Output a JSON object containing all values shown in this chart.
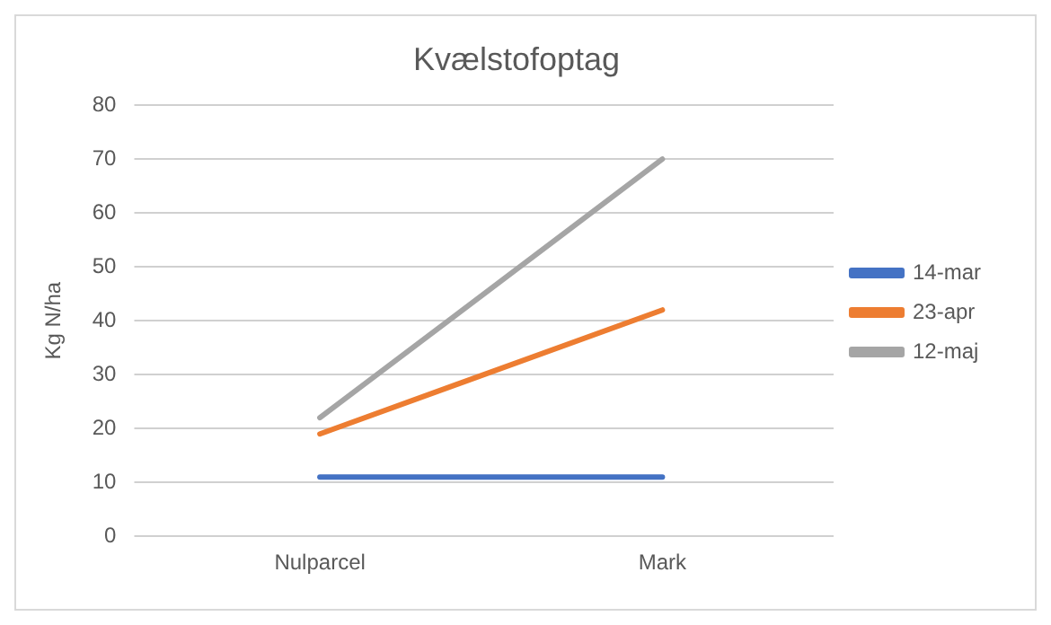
{
  "chart_data": {
    "type": "line",
    "title": "Kvælstofoptag",
    "ylabel": "Kg N/ha",
    "categories": [
      "Nulparcel",
      "Mark"
    ],
    "series": [
      {
        "name": "14-mar",
        "color": "#4472c4",
        "values": [
          11,
          11
        ]
      },
      {
        "name": "23-apr",
        "color": "#ed7d31",
        "values": [
          19,
          42
        ]
      },
      {
        "name": "12-maj",
        "color": "#a5a5a5",
        "values": [
          22,
          70
        ]
      }
    ],
    "ylim": [
      0,
      80
    ],
    "yticks": [
      0,
      10,
      20,
      30,
      40,
      50,
      60,
      70,
      80
    ],
    "grid": "y",
    "legend": "right",
    "marker": "none",
    "line_style": "solid"
  }
}
